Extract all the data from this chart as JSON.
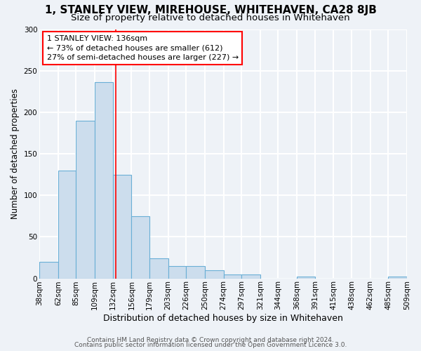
{
  "title": "1, STANLEY VIEW, MIREHOUSE, WHITEHAVEN, CA28 8JB",
  "subtitle": "Size of property relative to detached houses in Whitehaven",
  "xlabel": "Distribution of detached houses by size in Whitehaven",
  "ylabel": "Number of detached properties",
  "bin_edges": [
    38,
    62,
    85,
    109,
    132,
    156,
    179,
    203,
    226,
    250,
    274,
    297,
    321,
    344,
    368,
    391,
    415,
    438,
    462,
    485,
    509
  ],
  "bar_heights": [
    20,
    130,
    190,
    236,
    125,
    75,
    24,
    15,
    15,
    10,
    5,
    5,
    0,
    0,
    2,
    0,
    0,
    0,
    0,
    2
  ],
  "bar_color": "#ccdded",
  "bar_edgecolor": "#6aafd6",
  "property_line_x": 136,
  "property_line_color": "red",
  "annotation_text": "1 STANLEY VIEW: 136sqm\n← 73% of detached houses are smaller (612)\n27% of semi-detached houses are larger (227) →",
  "annotation_box_facecolor": "white",
  "annotation_box_edgecolor": "red",
  "ylim": [
    0,
    300
  ],
  "xlim": [
    38,
    509
  ],
  "yticks": [
    0,
    50,
    100,
    150,
    200,
    250,
    300
  ],
  "tick_labels": [
    "38sqm",
    "62sqm",
    "85sqm",
    "109sqm",
    "132sqm",
    "156sqm",
    "179sqm",
    "203sqm",
    "226sqm",
    "250sqm",
    "274sqm",
    "297sqm",
    "321sqm",
    "344sqm",
    "368sqm",
    "391sqm",
    "415sqm",
    "438sqm",
    "462sqm",
    "485sqm",
    "509sqm"
  ],
  "footer_line1": "Contains HM Land Registry data © Crown copyright and database right 2024.",
  "footer_line2": "Contains public sector information licensed under the Open Government Licence 3.0.",
  "background_color": "#eef2f7",
  "grid_color": "white",
  "title_fontsize": 11,
  "subtitle_fontsize": 9.5,
  "xlabel_fontsize": 9,
  "ylabel_fontsize": 8.5,
  "tick_fontsize": 7.5,
  "annotation_fontsize": 8,
  "footer_fontsize": 6.5
}
